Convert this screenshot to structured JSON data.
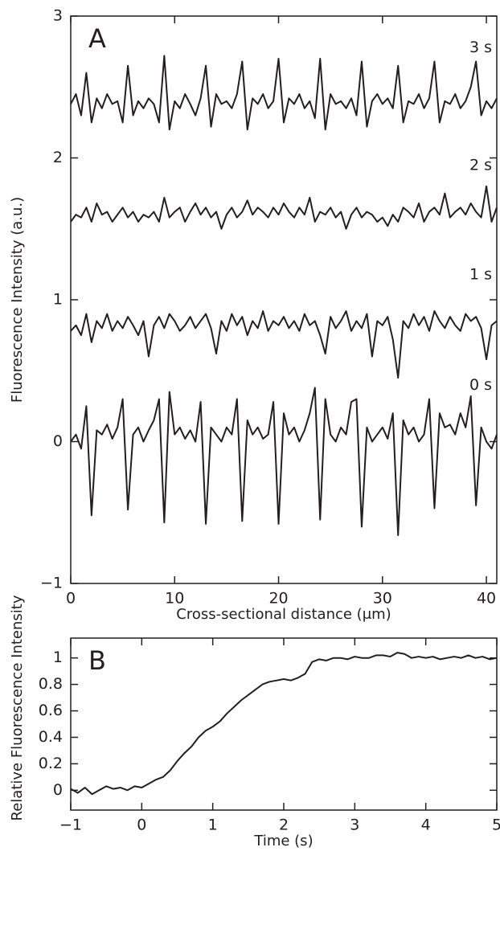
{
  "chart_data": [
    {
      "type": "line",
      "panel_label": "A",
      "xlabel": "Cross-sectional distance (μm)",
      "ylabel": "Fluorescence Intensity (a.u.)",
      "xlim": [
        0,
        41
      ],
      "ylim": [
        -1,
        3
      ],
      "xticks": [
        0,
        10,
        20,
        30,
        40
      ],
      "yticks": [
        {
          "value": -1,
          "label": "−1"
        },
        0,
        1,
        2,
        3
      ],
      "x": [
        0,
        0.5,
        1,
        1.5,
        2,
        2.5,
        3,
        3.5,
        4,
        4.5,
        5,
        5.5,
        6,
        6.5,
        7,
        7.5,
        8,
        8.5,
        9,
        9.5,
        10,
        10.5,
        11,
        11.5,
        12,
        12.5,
        13,
        13.5,
        14,
        14.5,
        15,
        15.5,
        16,
        16.5,
        17,
        17.5,
        18,
        18.5,
        19,
        19.5,
        20,
        20.5,
        21,
        21.5,
        22,
        22.5,
        23,
        23.5,
        24,
        24.5,
        25,
        25.5,
        26,
        26.5,
        27,
        27.5,
        28,
        28.5,
        29,
        29.5,
        30,
        30.5,
        31,
        31.5,
        32,
        32.5,
        33,
        33.5,
        34,
        34.5,
        35,
        35.5,
        36,
        36.5,
        37,
        37.5,
        38,
        38.5,
        39,
        39.5,
        40,
        40.5,
        41
      ],
      "series": [
        {
          "name": "3 s",
          "color": "#231f20",
          "values": [
            2.38,
            2.45,
            2.3,
            2.6,
            2.25,
            2.42,
            2.35,
            2.45,
            2.38,
            2.4,
            2.25,
            2.65,
            2.3,
            2.4,
            2.35,
            2.42,
            2.38,
            2.25,
            2.72,
            2.2,
            2.4,
            2.35,
            2.45,
            2.38,
            2.3,
            2.42,
            2.65,
            2.22,
            2.45,
            2.38,
            2.4,
            2.35,
            2.45,
            2.68,
            2.2,
            2.42,
            2.38,
            2.45,
            2.35,
            2.4,
            2.7,
            2.25,
            2.42,
            2.38,
            2.45,
            2.35,
            2.4,
            2.28,
            2.7,
            2.2,
            2.45,
            2.38,
            2.4,
            2.35,
            2.42,
            2.3,
            2.68,
            2.22,
            2.4,
            2.45,
            2.38,
            2.42,
            2.35,
            2.65,
            2.25,
            2.4,
            2.38,
            2.45,
            2.35,
            2.42,
            2.68,
            2.25,
            2.4,
            2.38,
            2.45,
            2.35,
            2.4,
            2.5,
            2.68,
            2.3,
            2.4,
            2.35,
            2.42
          ]
        },
        {
          "name": "2 s",
          "color": "#231f20",
          "values": [
            1.55,
            1.6,
            1.58,
            1.65,
            1.55,
            1.68,
            1.6,
            1.62,
            1.55,
            1.6,
            1.65,
            1.58,
            1.62,
            1.55,
            1.6,
            1.58,
            1.62,
            1.55,
            1.72,
            1.58,
            1.62,
            1.65,
            1.55,
            1.62,
            1.68,
            1.6,
            1.65,
            1.58,
            1.62,
            1.5,
            1.6,
            1.65,
            1.58,
            1.62,
            1.7,
            1.6,
            1.65,
            1.62,
            1.58,
            1.65,
            1.6,
            1.68,
            1.62,
            1.58,
            1.65,
            1.6,
            1.72,
            1.55,
            1.62,
            1.6,
            1.65,
            1.58,
            1.62,
            1.5,
            1.6,
            1.65,
            1.58,
            1.62,
            1.6,
            1.55,
            1.58,
            1.52,
            1.6,
            1.55,
            1.65,
            1.62,
            1.58,
            1.68,
            1.55,
            1.62,
            1.65,
            1.6,
            1.75,
            1.58,
            1.62,
            1.65,
            1.6,
            1.68,
            1.62,
            1.58,
            1.8,
            1.55,
            1.65
          ]
        },
        {
          "name": "1 s",
          "color": "#231f20",
          "values": [
            0.78,
            0.82,
            0.75,
            0.9,
            0.7,
            0.85,
            0.8,
            0.9,
            0.78,
            0.85,
            0.8,
            0.88,
            0.82,
            0.75,
            0.85,
            0.6,
            0.82,
            0.88,
            0.8,
            0.9,
            0.85,
            0.78,
            0.82,
            0.88,
            0.8,
            0.85,
            0.9,
            0.8,
            0.62,
            0.85,
            0.78,
            0.9,
            0.82,
            0.88,
            0.75,
            0.85,
            0.8,
            0.92,
            0.78,
            0.85,
            0.82,
            0.88,
            0.8,
            0.85,
            0.78,
            0.9,
            0.82,
            0.85,
            0.75,
            0.62,
            0.88,
            0.8,
            0.85,
            0.92,
            0.78,
            0.85,
            0.8,
            0.9,
            0.6,
            0.85,
            0.82,
            0.88,
            0.72,
            0.45,
            0.85,
            0.8,
            0.9,
            0.82,
            0.88,
            0.78,
            0.92,
            0.85,
            0.8,
            0.88,
            0.82,
            0.78,
            0.9,
            0.85,
            0.88,
            0.8,
            0.58,
            0.82,
            0.85
          ]
        },
        {
          "name": "0 s",
          "color": "#231f20",
          "values": [
            0.0,
            0.05,
            -0.05,
            0.25,
            -0.52,
            0.08,
            0.05,
            0.12,
            0.02,
            0.1,
            0.3,
            -0.48,
            0.05,
            0.1,
            0.0,
            0.08,
            0.15,
            0.3,
            -0.57,
            0.35,
            0.05,
            0.1,
            0.02,
            0.08,
            0.0,
            0.28,
            -0.58,
            0.1,
            0.05,
            0.0,
            0.1,
            0.05,
            0.3,
            -0.56,
            0.15,
            0.05,
            0.1,
            0.02,
            0.05,
            0.28,
            -0.58,
            0.2,
            0.05,
            0.1,
            0.0,
            0.08,
            0.2,
            0.38,
            -0.55,
            0.3,
            0.05,
            0.0,
            0.1,
            0.05,
            0.28,
            0.3,
            -0.6,
            0.1,
            0.0,
            0.05,
            0.1,
            0.02,
            0.2,
            -0.66,
            0.15,
            0.05,
            0.1,
            0.0,
            0.05,
            0.3,
            -0.47,
            0.2,
            0.1,
            0.12,
            0.05,
            0.2,
            0.1,
            0.32,
            -0.45,
            0.1,
            0.0,
            -0.05,
            0.05
          ]
        }
      ]
    },
    {
      "type": "line",
      "panel_label": "B",
      "xlabel": "Time (s)",
      "ylabel": "Relative Fluorescence Intensity",
      "xlim": [
        -1,
        5
      ],
      "ylim": [
        -0.15,
        1.15
      ],
      "xticks": [
        {
          "value": -1,
          "label": "−1"
        },
        0,
        1,
        2,
        3,
        4,
        5
      ],
      "yticks": [
        0,
        0.2,
        0.4,
        0.6,
        0.8,
        1
      ],
      "x": [
        -1,
        -0.9,
        -0.8,
        -0.7,
        -0.6,
        -0.5,
        -0.4,
        -0.3,
        -0.2,
        -0.1,
        0,
        0.1,
        0.2,
        0.3,
        0.4,
        0.5,
        0.6,
        0.7,
        0.8,
        0.9,
        1,
        1.1,
        1.2,
        1.3,
        1.4,
        1.5,
        1.6,
        1.7,
        1.8,
        1.9,
        2,
        2.1,
        2.2,
        2.3,
        2.4,
        2.5,
        2.6,
        2.7,
        2.8,
        2.9,
        3,
        3.1,
        3.2,
        3.3,
        3.4,
        3.5,
        3.6,
        3.7,
        3.8,
        3.9,
        4,
        4.1,
        4.2,
        4.3,
        4.4,
        4.5,
        4.6,
        4.7,
        4.8,
        4.9,
        5
      ],
      "series": [
        {
          "color": "#231f20",
          "values": [
            0.01,
            -0.02,
            0.02,
            -0.03,
            0.0,
            0.03,
            0.01,
            0.02,
            0.0,
            0.03,
            0.02,
            0.05,
            0.08,
            0.1,
            0.15,
            0.22,
            0.28,
            0.33,
            0.4,
            0.45,
            0.48,
            0.52,
            0.58,
            0.63,
            0.68,
            0.72,
            0.76,
            0.8,
            0.82,
            0.83,
            0.84,
            0.83,
            0.85,
            0.88,
            0.97,
            0.99,
            0.98,
            1.0,
            1.0,
            0.99,
            1.01,
            1.0,
            1.0,
            1.02,
            1.02,
            1.01,
            1.04,
            1.03,
            1.0,
            1.01,
            1.0,
            1.01,
            0.99,
            1.0,
            1.01,
            1.0,
            1.02,
            1.0,
            1.01,
            0.99,
            1.0
          ]
        }
      ]
    }
  ]
}
